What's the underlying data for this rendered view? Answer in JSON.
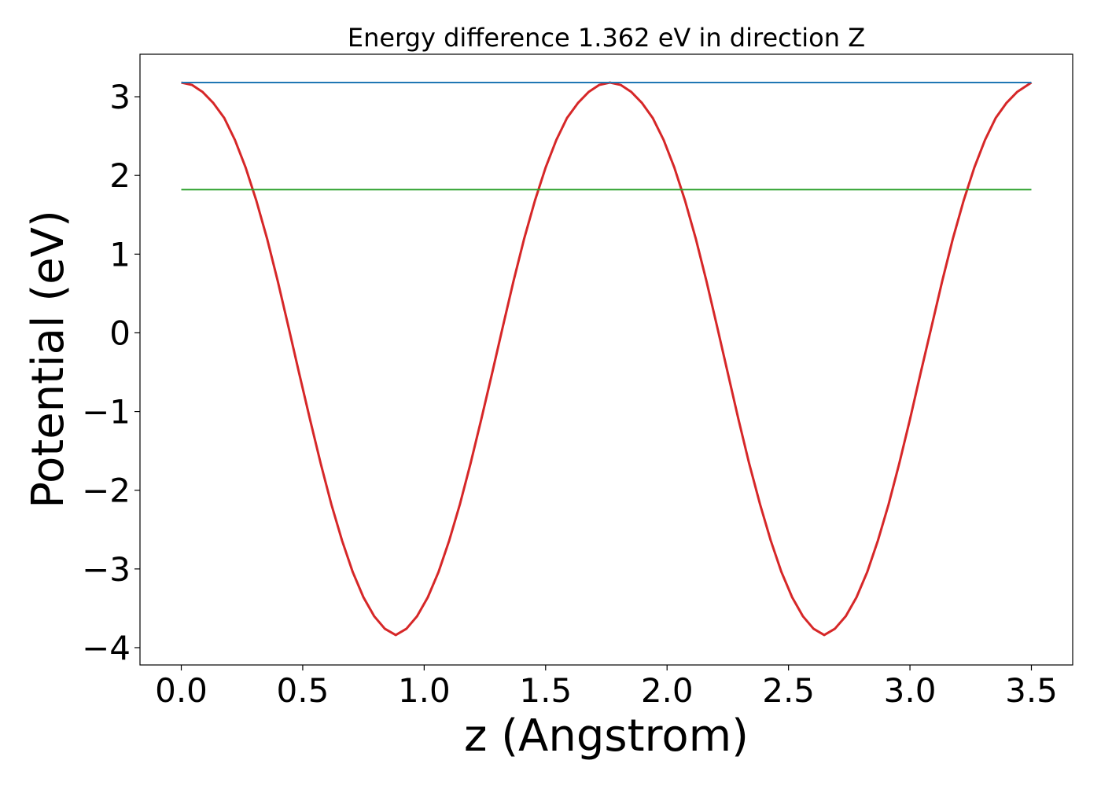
{
  "chart_data": {
    "type": "line",
    "title": "Energy difference 1.362 eV in direction Z",
    "xlabel": "z (Angstrom)",
    "ylabel": "Potential (eV)",
    "xlim": [
      -0.17,
      3.67
    ],
    "ylim": [
      -4.22,
      3.54
    ],
    "xticks": [
      0.0,
      0.5,
      1.0,
      1.5,
      2.0,
      2.5,
      3.0,
      3.5
    ],
    "xtick_labels": [
      "0.0",
      "0.5",
      "1.0",
      "1.5",
      "2.0",
      "2.5",
      "3.0",
      "3.5"
    ],
    "yticks": [
      -4,
      -3,
      -2,
      -1,
      0,
      1,
      2,
      3
    ],
    "ytick_labels": [
      "−4",
      "−3",
      "−2",
      "−1",
      "0",
      "1",
      "2",
      "3"
    ],
    "grid": false,
    "series": [
      {
        "color": "#d62728",
        "x": [
          0.0,
          0.044,
          0.088,
          0.132,
          0.177,
          0.221,
          0.265,
          0.309,
          0.353,
          0.397,
          0.441,
          0.485,
          0.53,
          0.574,
          0.618,
          0.662,
          0.706,
          0.75,
          0.794,
          0.838,
          0.883,
          0.927,
          0.971,
          1.015,
          1.059,
          1.103,
          1.147,
          1.191,
          1.235,
          1.28,
          1.324,
          1.368,
          1.412,
          1.456,
          1.5,
          1.544,
          1.588,
          1.633,
          1.677,
          1.721,
          1.765,
          1.809,
          1.853,
          1.897,
          1.941,
          1.986,
          2.03,
          2.074,
          2.118,
          2.162,
          2.206,
          2.25,
          2.294,
          2.338,
          2.383,
          2.427,
          2.471,
          2.515,
          2.559,
          2.603,
          2.647,
          2.691,
          2.736,
          2.78,
          2.824,
          2.868,
          2.912,
          2.956,
          3.0,
          3.044,
          3.089,
          3.133,
          3.177,
          3.221,
          3.265,
          3.309,
          3.353,
          3.397,
          3.441,
          3.5
        ],
        "y": [
          3.18,
          3.15,
          3.06,
          2.92,
          2.73,
          2.45,
          2.1,
          1.68,
          1.2,
          0.66,
          0.08,
          -0.51,
          -1.1,
          -1.66,
          -2.18,
          -2.64,
          -3.04,
          -3.36,
          -3.6,
          -3.76,
          -3.84,
          -3.76,
          -3.6,
          -3.36,
          -3.04,
          -2.64,
          -2.18,
          -1.66,
          -1.1,
          -0.51,
          0.08,
          0.66,
          1.2,
          1.68,
          2.1,
          2.45,
          2.73,
          2.92,
          3.06,
          3.15,
          3.18,
          3.15,
          3.06,
          2.92,
          2.73,
          2.45,
          2.1,
          1.68,
          1.2,
          0.66,
          0.08,
          -0.51,
          -1.1,
          -1.66,
          -2.18,
          -2.64,
          -3.04,
          -3.36,
          -3.6,
          -3.76,
          -3.84,
          -3.76,
          -3.6,
          -3.36,
          -3.04,
          -2.64,
          -2.18,
          -1.66,
          -1.1,
          -0.51,
          0.08,
          0.66,
          1.2,
          1.68,
          2.1,
          2.45,
          2.73,
          2.92,
          3.06,
          3.18
        ]
      },
      {
        "color": "#1f77b4",
        "x": [
          0.0,
          3.5
        ],
        "y": [
          3.18,
          3.18
        ]
      },
      {
        "color": "#2ca02c",
        "x": [
          0.0,
          3.5
        ],
        "y": [
          1.82,
          1.82
        ]
      }
    ]
  }
}
